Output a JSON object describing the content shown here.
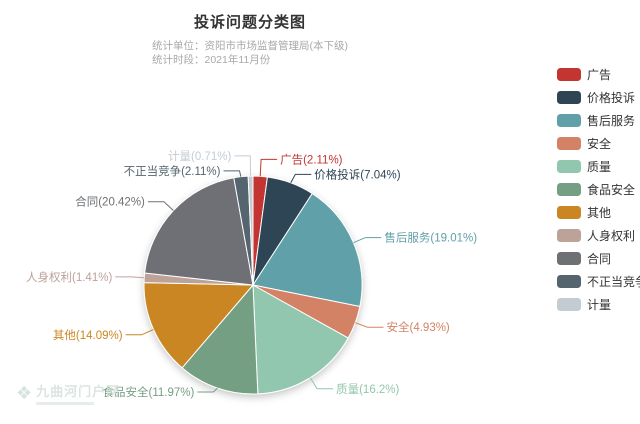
{
  "title": {
    "text": "投诉问题分类图",
    "subtitle_lines": [
      "统计单位：资阳市市场监督管理局(本下级)",
      "统计时段：2021年11月份"
    ]
  },
  "watermark": {
    "text": "九曲河门户网"
  },
  "chart_data": {
    "type": "pie",
    "title": "投诉问题分类图",
    "unit": "%",
    "legend_position": "right",
    "label_format": "{name}({value}%)",
    "slices": [
      {
        "name": "广告",
        "value": 2.11,
        "label": "广告(2.11%)",
        "color": "#c23531"
      },
      {
        "name": "价格投诉",
        "value": 7.04,
        "label": "价格投诉(7.04%)",
        "color": "#2f4554"
      },
      {
        "name": "售后服务",
        "value": 19.01,
        "label": "售后服务(19.01%)",
        "color": "#61a0a8"
      },
      {
        "name": "安全",
        "value": 4.93,
        "label": "安全(4.93%)",
        "color": "#d48265"
      },
      {
        "name": "质量",
        "value": 16.2,
        "label": "质量(16.2%)",
        "color": "#91c7ae"
      },
      {
        "name": "食品安全",
        "value": 11.97,
        "label": "食品安全(11.97%)",
        "color": "#749f83"
      },
      {
        "name": "其他",
        "value": 14.09,
        "label": "其他(14.09%)",
        "color": "#ca8622"
      },
      {
        "name": "人身权利",
        "value": 1.41,
        "label": "人身权利(1.41%)",
        "color": "#bda29a"
      },
      {
        "name": "合同",
        "value": 20.42,
        "label": "合同(20.42%)",
        "color": "#6e7074"
      },
      {
        "name": "不正当竞争",
        "value": 2.11,
        "label": "不正当竞争(2.11%)",
        "color": "#546570"
      },
      {
        "name": "计量",
        "value": 0.71,
        "label": "计量(0.71%)",
        "color": "#c4ccd3"
      }
    ]
  }
}
